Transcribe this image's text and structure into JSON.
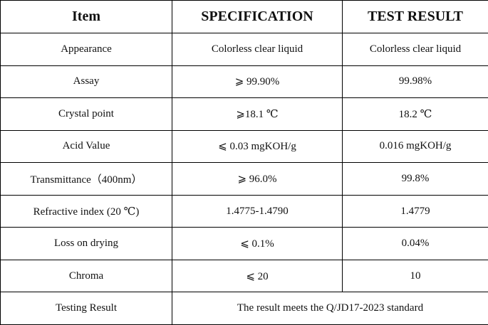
{
  "table": {
    "header": [
      "Item",
      "SPECIFICATION",
      "TEST RESULT"
    ],
    "rows": [
      [
        "Appearance",
        "Colorless clear liquid",
        "Colorless clear liquid"
      ],
      [
        "Assay",
        "⩾ 99.90%",
        "99.98%"
      ],
      [
        "Crystal point",
        "⩾18.1 ℃",
        "18.2 ℃"
      ],
      [
        "Acid Value",
        "⩽ 0.03 mgKOH/g",
        "0.016 mgKOH/g"
      ],
      [
        "Transmittance（400nm）",
        "⩾ 96.0%",
        "99.8%"
      ],
      [
        "Refractive index (20 ℃)",
        "1.4775-1.4790",
        "1.4779"
      ],
      [
        "Loss on drying",
        "⩽ 0.1%",
        "0.04%"
      ],
      [
        "Chroma",
        "⩽ 20",
        "10"
      ],
      [
        "Testing Result",
        "The result meets the Q/JD17-2023 standard"
      ]
    ]
  }
}
